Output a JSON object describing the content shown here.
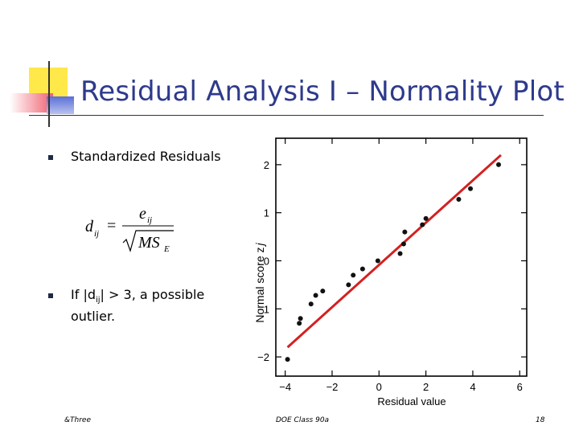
{
  "slide": {
    "title": "Residual Analysis I – Normality Plot",
    "bullets": [
      {
        "text": "Standardized Residuals"
      },
      {
        "text_prefix": "If |d",
        "subscript": "ij",
        "text_suffix": "| > 3, a possible",
        "line2": "outlier."
      }
    ],
    "formula": {
      "lhs": "d",
      "lhs_sub": "ij",
      "num": "e",
      "num_sub": "ij",
      "den": "MS",
      "den_sub": "E"
    },
    "footer": {
      "left": "&Three",
      "center": "DOE Class 90a",
      "right": "18"
    },
    "colors": {
      "title": "#2e3a8c",
      "fit_line": "#d42020",
      "deco_yellow": "#ffe84a",
      "deco_red": "#f06070",
      "deco_blue": "#5b6fd6"
    }
  },
  "chart_data": {
    "type": "scatter",
    "xlabel": "Residual value",
    "ylabel": "Normal score z",
    "ylabel_sub": "j",
    "xlim": [
      -4.4,
      6.3
    ],
    "ylim": [
      -2.4,
      2.55
    ],
    "x_ticks": [
      -4,
      -2,
      0,
      2,
      4,
      6
    ],
    "x_tick_labels": [
      "−4",
      "−2",
      "0",
      "2",
      "4",
      "6"
    ],
    "y_ticks": [
      -2,
      -1,
      0,
      1,
      2
    ],
    "y_tick_labels": [
      "−2",
      "−1",
      "0",
      "1",
      "2"
    ],
    "fit_line": [
      [
        -3.9,
        -1.8
      ],
      [
        5.2,
        2.2
      ]
    ],
    "points": [
      [
        -3.9,
        -2.05
      ],
      [
        -3.4,
        -1.3
      ],
      [
        -3.35,
        -1.2
      ],
      [
        -2.9,
        -0.9
      ],
      [
        -2.7,
        -0.72
      ],
      [
        -2.4,
        -0.63
      ],
      [
        -1.3,
        -0.5
      ],
      [
        -1.1,
        -0.3
      ],
      [
        -0.7,
        -0.17
      ],
      [
        -0.05,
        0.0
      ],
      [
        0.9,
        0.15
      ],
      [
        1.05,
        0.35
      ],
      [
        1.1,
        0.6
      ],
      [
        1.85,
        0.75
      ],
      [
        2.0,
        0.88
      ],
      [
        3.4,
        1.28
      ],
      [
        3.9,
        1.5
      ],
      [
        5.1,
        2.0
      ]
    ]
  }
}
